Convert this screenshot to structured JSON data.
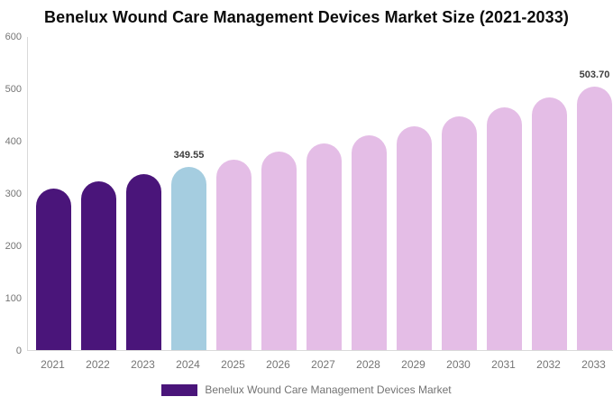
{
  "chart_data": {
    "type": "bar",
    "title": "Benelux Wound Care Management Devices Market Size (2021-2033)",
    "categories": [
      "2021",
      "2022",
      "2023",
      "2024",
      "2025",
      "2026",
      "2027",
      "2028",
      "2029",
      "2030",
      "2031",
      "2032",
      "2033"
    ],
    "series": [
      {
        "name": "Benelux Wound Care Management Devices Market",
        "values": [
          309.5,
          322.3,
          335.7,
          349.55,
          364.0,
          379.1,
          394.8,
          411.1,
          428.2,
          445.9,
          464.4,
          483.6,
          503.7
        ]
      }
    ],
    "point_labels": [
      "",
      "",
      "",
      "349.55",
      "",
      "",
      "",
      "",
      "",
      "",
      "",
      "",
      "503.70"
    ],
    "bar_colors": [
      "#4A157A",
      "#4A157A",
      "#4A157A",
      "#A5CDE0",
      "#E4BDE6",
      "#E4BDE6",
      "#E4BDE6",
      "#E4BDE6",
      "#E4BDE6",
      "#E4BDE6",
      "#E4BDE6",
      "#E4BDE6",
      "#E4BDE6"
    ],
    "xlabel": "",
    "ylabel": "",
    "ylim": [
      0,
      600
    ],
    "yticks": [
      0,
      100,
      200,
      300,
      400,
      500,
      600
    ],
    "grid": false,
    "legend_position": "bottom"
  },
  "legend": {
    "label": "Benelux Wound Care Management Devices Market",
    "swatch_color": "#4A157A"
  },
  "colors": {
    "historical_bar": "#4A157A",
    "base_year_bar": "#A5CDE0",
    "forecast_bar": "#E4BDE6",
    "axis_line": "#D9D9D9",
    "tick_text": "#757575",
    "value_label_text": "#3D3D3D",
    "legend_text": "#737373",
    "title_text": "#0B0B0B",
    "background": "#FFFFFF"
  }
}
